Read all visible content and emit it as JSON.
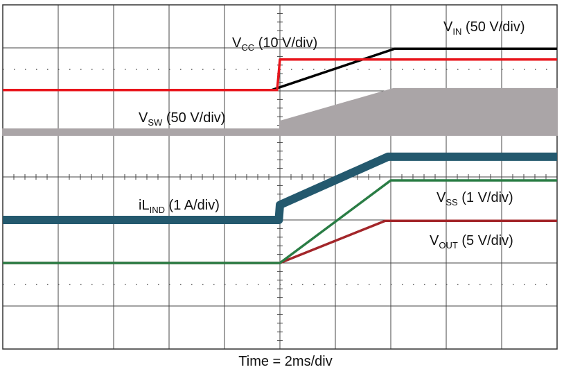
{
  "chart_data": {
    "type": "line",
    "xlabel": "Time = 2ms/div",
    "xlim": [
      0,
      10
    ],
    "ylim": [
      0,
      8
    ],
    "grid": true,
    "series": [
      {
        "name": "V",
        "name_sub": "SW",
        "scale": "(50 V/div)",
        "color": "#aaa5a7",
        "kind": "band",
        "x": [
          0,
          5.0,
          5.0,
          7.05,
          10
        ],
        "values": [
          5.11,
          5.11,
          5.29,
          6.05,
          6.05
        ],
        "low": 4.97
      },
      {
        "name": "V",
        "name_sub": "IN",
        "scale": "(50 V/div)",
        "color": "#000000",
        "x": [
          0,
          4.85,
          7.07,
          10
        ],
        "values": [
          6.02,
          6.02,
          6.98,
          6.98
        ]
      },
      {
        "name": "V",
        "name_sub": "CC",
        "scale": "(10 V/div)",
        "color": "#e8141b",
        "x": [
          0,
          4.95,
          5.0,
          10
        ],
        "values": [
          6.02,
          6.02,
          6.73,
          6.73
        ]
      },
      {
        "name": "iL",
        "name_sub": "IND",
        "scale": "(1 A/div)",
        "color": "#24596e",
        "width": 12,
        "x": [
          0,
          4.98,
          5.0,
          6.95,
          10
        ],
        "values": [
          3.0,
          3.0,
          3.35,
          4.47,
          4.47
        ]
      },
      {
        "name": "V",
        "name_sub": "OUT",
        "scale": "(5 V/div)",
        "color": "#a3262a",
        "x": [
          0,
          5.0,
          6.9,
          10
        ],
        "values": [
          2.0,
          2.0,
          2.98,
          2.98
        ]
      },
      {
        "name": "V",
        "name_sub": "SS",
        "scale": "(1 V/div)",
        "color": "#2a7d45",
        "x": [
          0,
          5.0,
          7.0,
          10
        ],
        "values": [
          2.0,
          2.0,
          3.92,
          3.92
        ]
      }
    ]
  }
}
